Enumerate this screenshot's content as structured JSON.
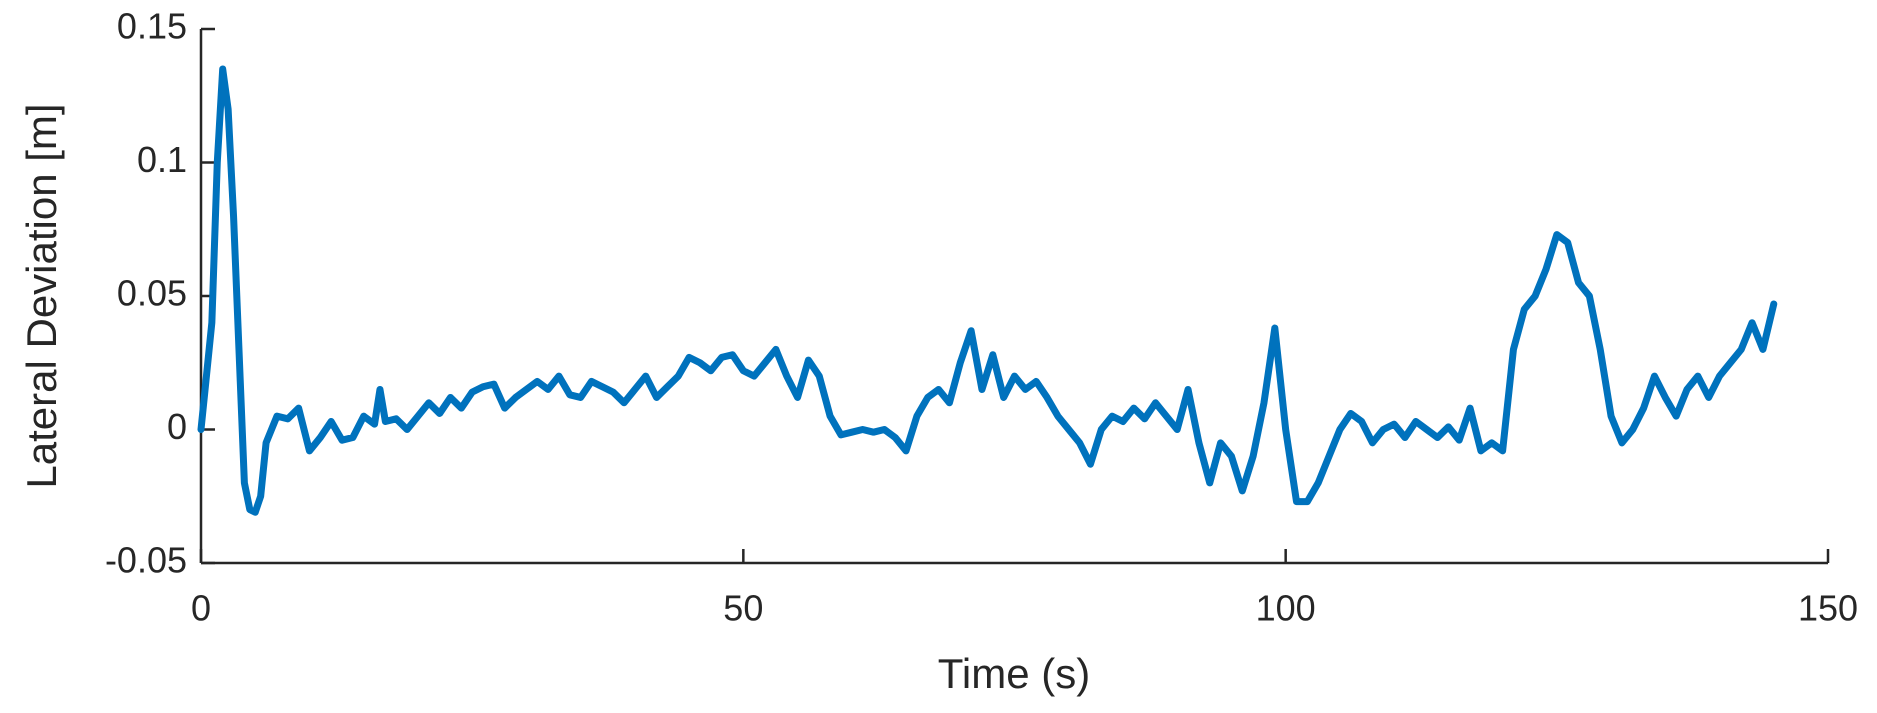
{
  "chart_data": {
    "type": "line",
    "xlabel": "Time (s)",
    "ylabel": "Lateral Deviation [m]",
    "x": [
      0,
      1,
      1.5,
      2,
      2.5,
      3,
      3.5,
      4,
      4.5,
      5,
      5.5,
      6,
      7,
      8,
      9,
      10,
      11,
      12,
      13,
      14,
      15,
      16,
      16.5,
      17,
      18,
      19,
      20,
      21,
      22,
      23,
      24,
      25,
      26,
      27,
      28,
      29,
      30,
      31,
      32,
      33,
      34,
      35,
      36,
      37,
      38,
      39,
      40,
      41,
      42,
      43,
      44,
      45,
      46,
      47,
      48,
      49,
      50,
      51,
      52,
      53,
      54,
      55,
      56,
      57,
      58,
      59,
      60,
      61,
      62,
      63,
      64,
      65,
      66,
      67,
      68,
      69,
      70,
      71,
      72,
      73,
      74,
      75,
      76,
      77,
      78,
      79,
      80,
      81,
      82,
      83,
      84,
      85,
      86,
      87,
      88,
      89,
      90,
      91,
      92,
      93,
      94,
      95,
      96,
      97,
      98,
      99,
      100,
      101,
      102,
      103,
      104,
      105,
      106,
      107,
      108,
      109,
      110,
      111,
      112,
      113,
      114,
      115,
      116,
      117,
      118,
      119,
      120,
      121,
      122,
      123,
      124,
      125,
      126,
      127,
      128,
      129,
      130,
      131,
      132,
      133,
      134,
      135,
      136,
      137,
      138,
      139,
      140,
      141,
      142,
      143,
      144,
      145
    ],
    "values": [
      0,
      0.04,
      0.1,
      0.135,
      0.12,
      0.08,
      0.03,
      -0.02,
      -0.03,
      -0.031,
      -0.025,
      -0.005,
      0.005,
      0.004,
      0.008,
      -0.008,
      -0.003,
      0.003,
      -0.004,
      -0.003,
      0.005,
      0.002,
      0.015,
      0.003,
      0.004,
      0,
      0.005,
      0.01,
      0.006,
      0.012,
      0.008,
      0.014,
      0.016,
      0.017,
      0.008,
      0.012,
      0.015,
      0.018,
      0.015,
      0.02,
      0.013,
      0.012,
      0.018,
      0.016,
      0.014,
      0.01,
      0.015,
      0.02,
      0.012,
      0.016,
      0.02,
      0.027,
      0.025,
      0.022,
      0.027,
      0.028,
      0.022,
      0.02,
      0.025,
      0.03,
      0.02,
      0.012,
      0.026,
      0.02,
      0.005,
      -0.002,
      -0.001,
      0,
      -0.001,
      0,
      -0.003,
      -0.008,
      0.005,
      0.012,
      0.015,
      0.01,
      0.025,
      0.037,
      0.015,
      0.028,
      0.012,
      0.02,
      0.015,
      0.018,
      0.012,
      0.005,
      0,
      -0.005,
      -0.013,
      0,
      0.005,
      0.003,
      0.008,
      0.004,
      0.01,
      0.005,
      0,
      0.015,
      -0.005,
      -0.02,
      -0.005,
      -0.01,
      -0.023,
      -0.01,
      0.01,
      0.038,
      0,
      -0.027,
      -0.027,
      -0.02,
      -0.01,
      0,
      0.006,
      0.003,
      -0.005,
      0,
      0.002,
      -0.003,
      0.003,
      0,
      -0.003,
      0.001,
      -0.004,
      0.008,
      -0.008,
      -0.005,
      -0.008,
      0.03,
      0.045,
      0.05,
      0.06,
      0.073,
      0.07,
      0.055,
      0.05,
      0.03,
      0.005,
      -0.005,
      0,
      0.008,
      0.02,
      0.012,
      0.005,
      0.015,
      0.02,
      0.012,
      0.02,
      0.025,
      0.03,
      0.04,
      0.03,
      0.047
    ],
    "color": "#0072bd",
    "xlim": [
      0,
      150
    ],
    "xticks": [
      0,
      50,
      100,
      150
    ],
    "ylim": [
      -0.05,
      0.15
    ],
    "yticks": [
      -0.05,
      0,
      0.05,
      0.1,
      0.15
    ]
  }
}
